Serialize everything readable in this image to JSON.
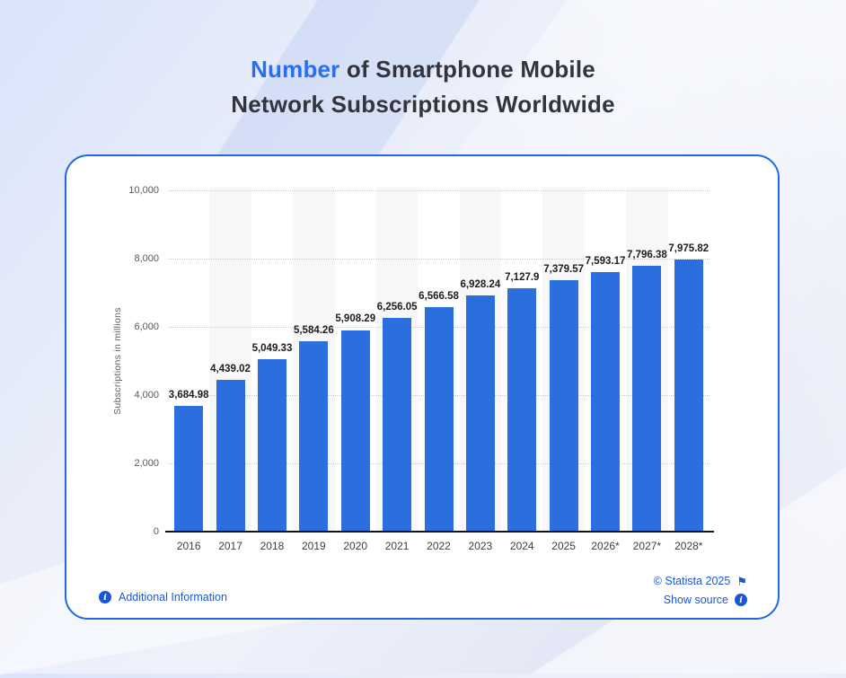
{
  "title": {
    "highlight": "Number",
    "line1_rest": " of Smartphone Mobile",
    "line2": "Network Subscriptions Worldwide"
  },
  "chart_data": {
    "type": "bar",
    "title": "Number of Smartphone Mobile Network Subscriptions Worldwide",
    "categories": [
      "2016",
      "2017",
      "2018",
      "2019",
      "2020",
      "2021",
      "2022",
      "2023",
      "2024",
      "2025",
      "2026*",
      "2027*",
      "2028*"
    ],
    "values": [
      3684.98,
      4439.02,
      5049.33,
      5584.26,
      5908.29,
      6256.05,
      6566.58,
      6928.24,
      7127.9,
      7379.57,
      7593.17,
      7796.38,
      7975.82
    ],
    "value_labels": [
      "3,684.98",
      "4,439.02",
      "5,049.33",
      "5,584.26",
      "5,908.29",
      "6,256.05",
      "6,566.58",
      "6,928.24",
      "7,127.9",
      "7,379.57",
      "7,593.17",
      "7,796.38",
      "7,975.82"
    ],
    "xlabel": "",
    "ylabel": "Subscriptions in millions",
    "ylim": [
      0,
      10000
    ],
    "yticks": [
      0,
      2000,
      4000,
      6000,
      8000,
      10000
    ],
    "ytick_labels": [
      "0",
      "2,000",
      "4,000",
      "6,000",
      "8,000",
      "10,000"
    ],
    "grid": "horizontal dotted",
    "legend": "none",
    "bar_color": "#2a6fdd",
    "band_color": "#f7f7f9"
  },
  "footer": {
    "additional_information": "Additional Information",
    "copyright": "© Statista 2025",
    "show_source": "Show source"
  },
  "icons": {
    "info_glyph": "i",
    "flag_glyph": "⚑"
  },
  "colors": {
    "accent_blue": "#2a6ff2",
    "title_dark": "#33343c",
    "bar_blue": "#2a6fdd",
    "link_blue": "#1a57d6",
    "card_border": "#2368dd"
  }
}
